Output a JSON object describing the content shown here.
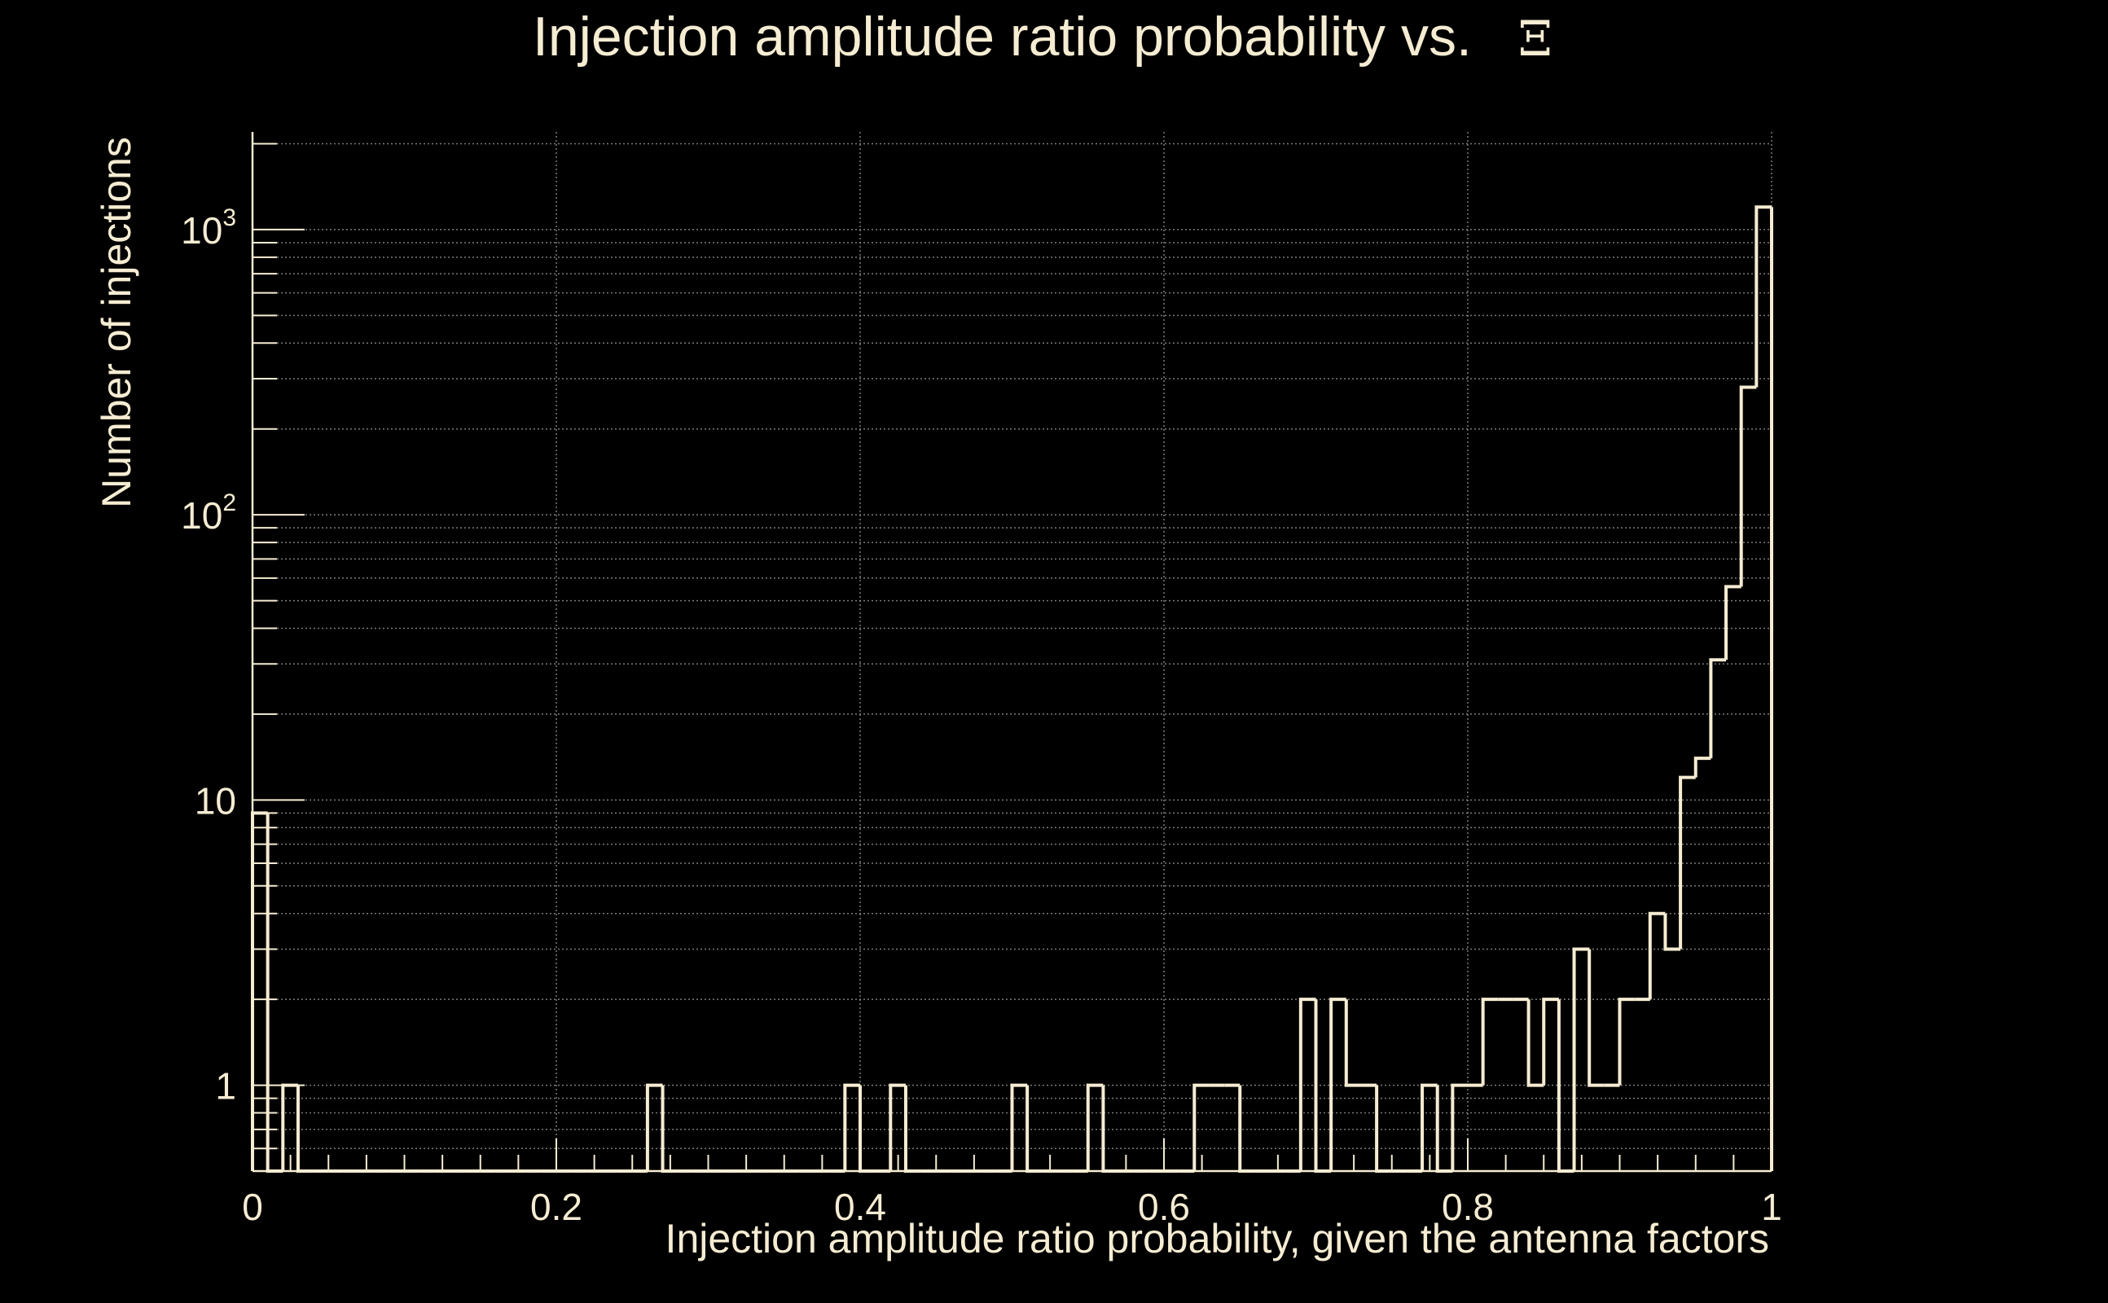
{
  "chart_data": {
    "type": "bar",
    "style": "step-histogram",
    "title": "Injection amplitude ratio probability vs.",
    "title_symbol": "Ξ",
    "xlabel": "Injection amplitude ratio probability, given the antenna factors",
    "ylabel": "Number of injections",
    "x_scale": "linear",
    "y_scale": "log",
    "xlim": [
      0,
      1
    ],
    "ylim": [
      0.5,
      2200
    ],
    "x_ticks": [
      {
        "value": 0,
        "label": "0"
      },
      {
        "value": 0.2,
        "label": "0.2"
      },
      {
        "value": 0.4,
        "label": "0.4"
      },
      {
        "value": 0.6,
        "label": "0.6"
      },
      {
        "value": 0.8,
        "label": "0.8"
      },
      {
        "value": 1,
        "label": "1"
      }
    ],
    "y_ticks": [
      {
        "value": 1,
        "base": "1",
        "exp": ""
      },
      {
        "value": 10,
        "base": "10",
        "exp": ""
      },
      {
        "value": 100,
        "base": "10",
        "exp": "2"
      },
      {
        "value": 1000,
        "base": "10",
        "exp": "3"
      }
    ],
    "grid": true,
    "legend": "none",
    "bin_width": 0.01,
    "x": [
      0.005,
      0.015,
      0.025,
      0.035,
      0.045,
      0.055,
      0.065,
      0.075,
      0.085,
      0.095,
      0.105,
      0.115,
      0.125,
      0.135,
      0.145,
      0.155,
      0.165,
      0.175,
      0.185,
      0.195,
      0.205,
      0.215,
      0.225,
      0.235,
      0.245,
      0.255,
      0.265,
      0.275,
      0.285,
      0.295,
      0.305,
      0.315,
      0.325,
      0.335,
      0.345,
      0.355,
      0.365,
      0.375,
      0.385,
      0.395,
      0.405,
      0.415,
      0.425,
      0.435,
      0.445,
      0.455,
      0.465,
      0.475,
      0.485,
      0.495,
      0.505,
      0.515,
      0.525,
      0.535,
      0.545,
      0.555,
      0.565,
      0.575,
      0.585,
      0.595,
      0.605,
      0.615,
      0.625,
      0.635,
      0.645,
      0.655,
      0.665,
      0.675,
      0.685,
      0.695,
      0.705,
      0.715,
      0.725,
      0.735,
      0.745,
      0.755,
      0.765,
      0.775,
      0.785,
      0.795,
      0.805,
      0.815,
      0.825,
      0.835,
      0.845,
      0.855,
      0.865,
      0.875,
      0.885,
      0.895,
      0.905,
      0.915,
      0.925,
      0.935,
      0.945,
      0.955,
      0.965,
      0.975,
      0.985,
      0.995
    ],
    "values": [
      9,
      0,
      1,
      0,
      0,
      0,
      0,
      0,
      0,
      0,
      0,
      0,
      0,
      0,
      0,
      0,
      0,
      0,
      0,
      0,
      0,
      0,
      0,
      0,
      0,
      0,
      1,
      0,
      0,
      0,
      0,
      0,
      0,
      0,
      0,
      0,
      0,
      0,
      0,
      1,
      0,
      0,
      1,
      0,
      0,
      0,
      0,
      0,
      0,
      0,
      1,
      0,
      0,
      0,
      0,
      1,
      0,
      0,
      0,
      0,
      0,
      0,
      1,
      1,
      1,
      0,
      0,
      0,
      0,
      2,
      0,
      2,
      1,
      1,
      0,
      0,
      0,
      1,
      0,
      1,
      1,
      2,
      2,
      2,
      1,
      2,
      0,
      3,
      1,
      1,
      2,
      2,
      4,
      3,
      12,
      14,
      31,
      56,
      280,
      1200
    ]
  },
  "colors": {
    "background": "#000000",
    "foreground": "#f5ecd2",
    "grid": "#9a9a9a"
  }
}
